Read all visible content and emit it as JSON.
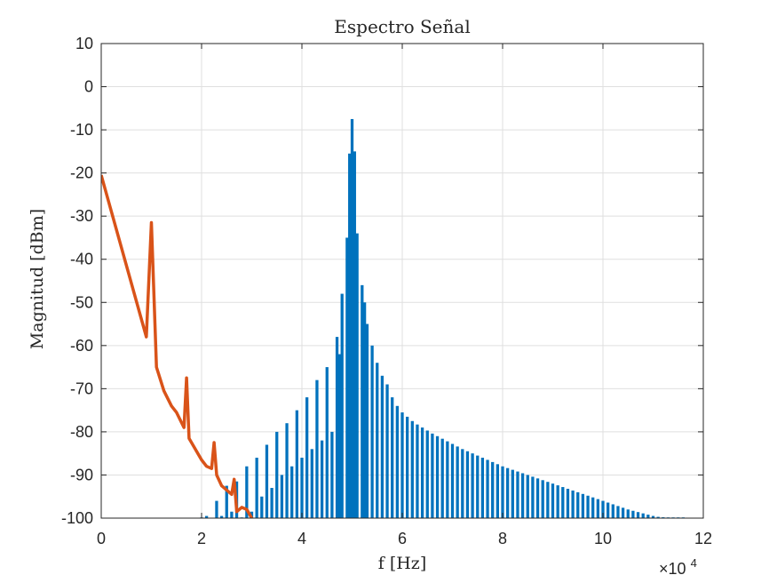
{
  "chart_data": {
    "type": "bar+line",
    "title": "Espectro Señal",
    "xlabel": "f [Hz]",
    "ylabel": "Magnitud [dBm]",
    "x_scale_label": "×10",
    "x_scale_exp": "4",
    "xlim": [
      0,
      120000
    ],
    "ylim": [
      -100,
      10
    ],
    "xticks": [
      0,
      2,
      4,
      6,
      8,
      10,
      12
    ],
    "yticks": [
      10,
      0,
      -10,
      -20,
      -30,
      -40,
      -50,
      -60,
      -70,
      -80,
      -90,
      -100
    ],
    "grid": true,
    "colors": {
      "bars": "#0072BD",
      "line": "#D95319",
      "grid": "#dfdfdf",
      "axis": "#262626"
    },
    "series": [
      {
        "type": "bar",
        "x": [
          20000,
          21000,
          23000,
          24000,
          25000,
          26000,
          27000,
          28000,
          29000,
          30000,
          31000,
          32000,
          33000,
          34000,
          35000,
          36000,
          37000,
          38000,
          39000,
          40000,
          41000,
          42000,
          43000,
          44000,
          45000,
          46000,
          47000,
          47500,
          48000,
          49000,
          49500,
          50000,
          50500,
          51000,
          52000,
          52500,
          53000,
          54000,
          55000,
          56000,
          57000,
          58000,
          59000,
          60000,
          61000,
          62000,
          63000,
          64000,
          65000,
          66000,
          67000,
          68000,
          69000,
          70000,
          71000,
          72000,
          73000,
          74000,
          75000,
          76000,
          77000,
          78000,
          79000,
          80000,
          81000,
          82000,
          83000,
          84000,
          85000,
          86000,
          87000,
          88000,
          89000,
          90000,
          91000,
          92000,
          93000,
          94000,
          95000,
          96000,
          97000,
          98000,
          99000,
          100000,
          101000,
          102000,
          103000,
          104000,
          105000,
          106000,
          107000,
          108000,
          109000,
          110000,
          111000,
          112000,
          113000,
          114000,
          115000,
          116000
        ],
        "values": [
          -100,
          -99.5,
          -96,
          -99.5,
          -92.5,
          -98.5,
          -91.5,
          -100,
          -88,
          -98.5,
          -86,
          -95,
          -83,
          -93,
          -80,
          -90,
          -78,
          -88,
          -75,
          -86,
          -72,
          -84,
          -68,
          -82,
          -65,
          -80,
          -58,
          -62,
          -48,
          -35,
          -15.5,
          -7.5,
          -15,
          -34,
          -46,
          -50,
          -55,
          -60,
          -64,
          -67,
          -69,
          -72,
          -74,
          -75.5,
          -76.5,
          -77.5,
          -78.3,
          -79,
          -79.7,
          -80.4,
          -81,
          -81.6,
          -82.2,
          -82.8,
          -83.4,
          -84,
          -84.5,
          -85,
          -85.5,
          -86,
          -86.5,
          -87,
          -87.5,
          -88,
          -88.4,
          -88.8,
          -89.2,
          -89.6,
          -90,
          -90.4,
          -90.8,
          -91.2,
          -91.6,
          -92,
          -92.4,
          -92.8,
          -93.2,
          -93.6,
          -94,
          -94.4,
          -94.8,
          -95.2,
          -95.6,
          -96,
          -96.4,
          -96.8,
          -97.2,
          -97.6,
          -98,
          -98.3,
          -98.6,
          -98.9,
          -99.2,
          -99.5,
          -99.7,
          -99.8,
          -99.9,
          -100,
          -100,
          -100
        ]
      },
      {
        "type": "line",
        "x": [
          0,
          9000,
          10000,
          11000,
          12500,
          14000,
          15000,
          16500,
          17000,
          17500,
          18500,
          20000,
          21000,
          22000,
          22500,
          23000,
          24000,
          26000,
          26500,
          27000,
          28000,
          29000,
          30000
        ],
        "values": [
          -20.5,
          -58,
          -31.5,
          -65,
          -70.5,
          -74,
          -75.5,
          -79,
          -67.5,
          -81.5,
          -83.5,
          -86.5,
          -88,
          -88.5,
          -82.5,
          -90,
          -92.5,
          -94.5,
          -91,
          -98.5,
          -97.5,
          -98,
          -100
        ]
      }
    ]
  }
}
